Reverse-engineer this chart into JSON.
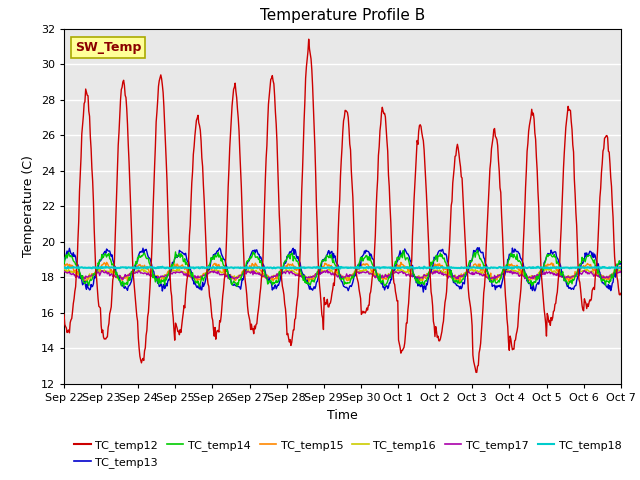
{
  "title": "Temperature Profile B",
  "xlabel": "Time",
  "ylabel": "Temperature (C)",
  "ylim": [
    12,
    32
  ],
  "yticks": [
    12,
    14,
    16,
    18,
    20,
    22,
    24,
    26,
    28,
    30,
    32
  ],
  "background_color": "#e8e8e8",
  "sw_temp_label": "SW_Temp",
  "sw_temp_box_color": "#ffff99",
  "sw_temp_text_color": "#8b0000",
  "legend_entries": [
    "TC_temp12",
    "TC_temp13",
    "TC_temp14",
    "TC_temp15",
    "TC_temp16",
    "TC_temp17",
    "TC_temp18"
  ],
  "line_colors": [
    "#cc0000",
    "#0000cc",
    "#00cc00",
    "#ff8800",
    "#cccc00",
    "#aa00aa",
    "#00cccc"
  ],
  "x_tick_labels": [
    "Sep 22",
    "Sep 23",
    "Sep 24",
    "Sep 25",
    "Sep 26",
    "Sep 27",
    "Sep 28",
    "Sep 29",
    "Sep 30",
    "Oct 1",
    "Oct 2",
    "Oct 3",
    "Oct 4",
    "Oct 5",
    "Oct 6",
    "Oct 7"
  ]
}
